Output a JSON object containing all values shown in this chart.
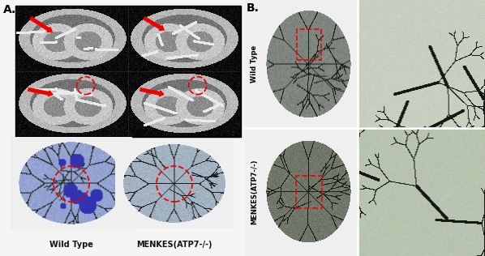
{
  "fig_width": 5.98,
  "fig_height": 3.16,
  "dpi": 100,
  "bg_color": "#f5f5f5",
  "section_a_label": "A.",
  "section_b_label": "B.",
  "label_fontsize": 10,
  "label_font_weight": "bold",
  "bottom_left_label": "Wild Type",
  "bottom_right_label": "MENKES(ATP7-/-)",
  "right_top_label": "Wild Type",
  "right_bottom_label": "MENKES(ATP7-/-)",
  "caption_fontsize": 7,
  "rot_label_fontsize": 6,
  "arrow_color": "#ee0000",
  "circle_color": "#ee0000",
  "rect_color": "#ee0000",
  "mct_bg": "#080808",
  "wt_brain_color": "#7a9080",
  "mk_brain_color": "#5a7068",
  "vessel_color": "#1a2018",
  "wt_vessel_bg": "#c8d4c0",
  "mk_vessel_bg": "#b0c4a8",
  "brain_a_wt_color": "#8899aa",
  "brain_a_mk_color": "#aab8a0"
}
